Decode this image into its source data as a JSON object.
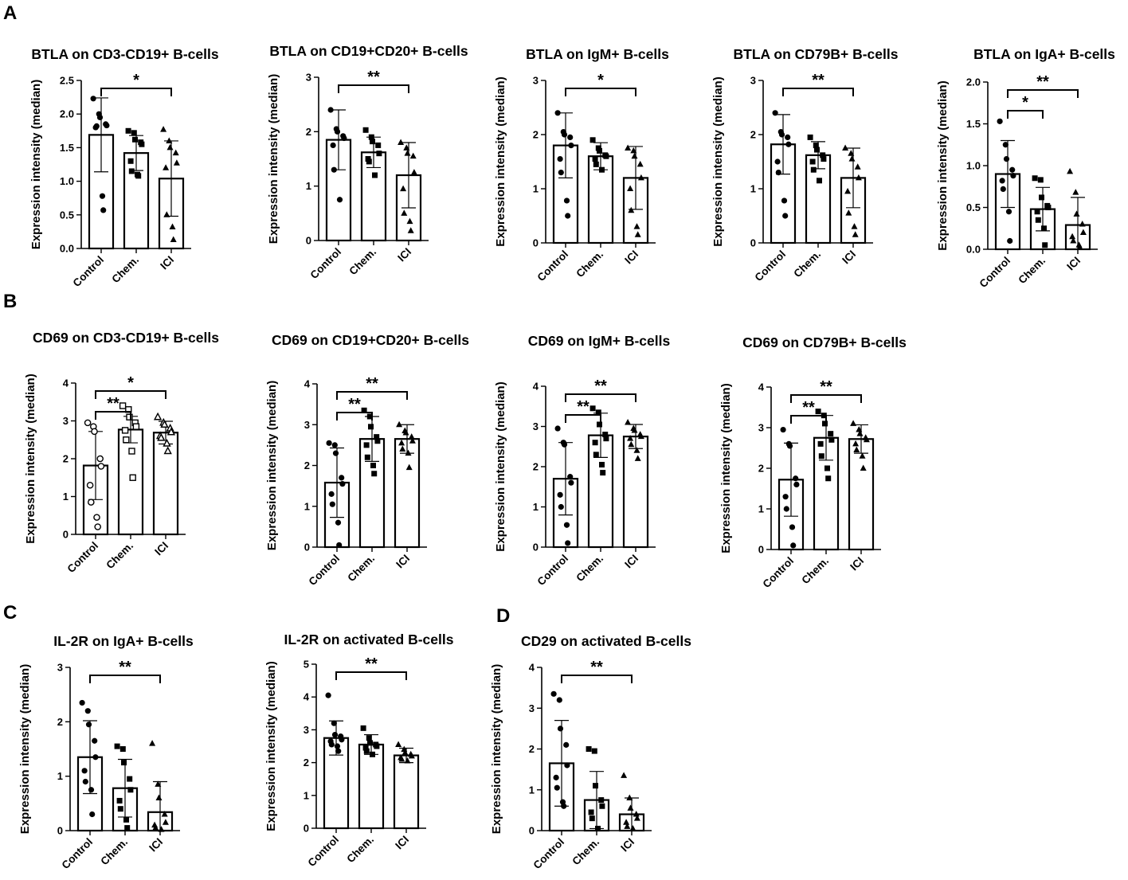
{
  "panel_labels": {
    "A": "A",
    "B": "B",
    "C": "C",
    "D": "D"
  },
  "colors": {
    "ink": "#000000",
    "bar_fill": "#ffffff"
  },
  "chart_data": [
    {
      "type": "bar",
      "panel": "A",
      "title": "BTLA on CD3-CD19+ B-cells",
      "ylabel": "Expression intensity (median)",
      "categories": [
        "Control",
        "Chem.",
        "ICI"
      ],
      "values": [
        1.69,
        1.42,
        1.04
      ],
      "sd": [
        0.55,
        0.26,
        0.56
      ],
      "ylim": [
        0,
        2.5
      ],
      "yticks": [
        "0.0",
        "0.5",
        "1.0",
        "1.5",
        "2.0",
        "2.5"
      ],
      "markers": [
        "circle",
        "square",
        "triangle"
      ],
      "points": [
        [
          2.23,
          2.0,
          1.95,
          1.85,
          1.83,
          1.8,
          1.82,
          0.78,
          0.57
        ],
        [
          1.75,
          1.72,
          1.62,
          1.58,
          1.55,
          1.3,
          1.15,
          1.1,
          1.08
        ],
        [
          1.77,
          1.6,
          1.5,
          1.42,
          1.27,
          1.2,
          0.5,
          0.32,
          0.13
        ]
      ],
      "significance": [
        {
          "from": 0,
          "to": 2,
          "label": "*"
        }
      ]
    },
    {
      "type": "bar",
      "panel": "A",
      "title": "BTLA on CD19+CD20+ B-cells",
      "ylabel": "Expression intensity (median)",
      "categories": [
        "Control",
        "Chem.",
        "ICI"
      ],
      "values": [
        1.85,
        1.62,
        1.2
      ],
      "sd": [
        0.55,
        0.28,
        0.6
      ],
      "ylim": [
        0,
        3
      ],
      "yticks": [
        "0",
        "1",
        "2",
        "3"
      ],
      "markers": [
        "circle",
        "square",
        "triangle"
      ],
      "points": [
        [
          2.4,
          2.05,
          2.0,
          1.92,
          1.88,
          1.75,
          1.3,
          0.75
        ],
        [
          2.03,
          1.9,
          1.82,
          1.75,
          1.6,
          1.5,
          1.45,
          1.2
        ],
        [
          1.8,
          1.7,
          1.6,
          1.55,
          1.25,
          0.95,
          0.5,
          0.35,
          0.18
        ]
      ],
      "significance": [
        {
          "from": 0,
          "to": 2,
          "label": "**"
        }
      ]
    },
    {
      "type": "bar",
      "panel": "A",
      "title": "BTLA on IgM+ B-cells",
      "ylabel": "Expression intensity (median)",
      "categories": [
        "Control",
        "Chem.",
        "ICI"
      ],
      "values": [
        1.8,
        1.6,
        1.2
      ],
      "sd": [
        0.6,
        0.25,
        0.58
      ],
      "ylim": [
        0,
        3
      ],
      "yticks": [
        "0",
        "1",
        "2",
        "3"
      ],
      "markers": [
        "circle",
        "square",
        "triangle"
      ],
      "points": [
        [
          2.4,
          2.05,
          2.0,
          1.95,
          1.8,
          1.55,
          1.3,
          0.78,
          0.5
        ],
        [
          1.9,
          1.75,
          1.7,
          1.62,
          1.6,
          1.55,
          1.45,
          1.35
        ],
        [
          1.75,
          1.7,
          1.6,
          1.45,
          1.2,
          1.0,
          0.6,
          0.3,
          0.15
        ]
      ],
      "significance": [
        {
          "from": 0,
          "to": 2,
          "label": "*"
        }
      ]
    },
    {
      "type": "bar",
      "panel": "A",
      "title": "BTLA on CD79B+ B-cells",
      "ylabel": "Expression intensity (median)",
      "categories": [
        "Control",
        "Chem.",
        "ICI"
      ],
      "values": [
        1.82,
        1.62,
        1.2
      ],
      "sd": [
        0.55,
        0.25,
        0.55
      ],
      "ylim": [
        0,
        3
      ],
      "yticks": [
        "0",
        "1",
        "2",
        "3"
      ],
      "markers": [
        "circle",
        "square",
        "triangle"
      ],
      "points": [
        [
          2.4,
          2.05,
          2.0,
          1.95,
          1.82,
          1.5,
          1.3,
          0.78,
          0.5
        ],
        [
          1.95,
          1.8,
          1.72,
          1.62,
          1.55,
          1.5,
          1.35,
          1.15
        ],
        [
          1.75,
          1.65,
          1.55,
          1.4,
          1.2,
          0.95,
          0.55,
          0.3,
          0.15
        ]
      ],
      "significance": [
        {
          "from": 0,
          "to": 2,
          "label": "**"
        }
      ]
    },
    {
      "type": "bar",
      "panel": "A",
      "title": "BTLA on IgA+ B-cells",
      "ylabel": "Expression intensity (median)",
      "categories": [
        "Control",
        "Chem.",
        "ICI"
      ],
      "values": [
        0.9,
        0.48,
        0.29
      ],
      "sd": [
        0.4,
        0.26,
        0.33
      ],
      "ylim": [
        0,
        2.0
      ],
      "yticks": [
        "0.0",
        "0.5",
        "1.0",
        "1.5",
        "2.0"
      ],
      "markers": [
        "circle",
        "square",
        "triangle"
      ],
      "points": [
        [
          1.53,
          1.25,
          1.08,
          0.95,
          0.88,
          0.82,
          0.72,
          0.45,
          0.1
        ],
        [
          0.85,
          0.83,
          0.62,
          0.52,
          0.5,
          0.45,
          0.35,
          0.25,
          0.05
        ],
        [
          0.93,
          0.68,
          0.42,
          0.3,
          0.2,
          0.15,
          0.1,
          0.05,
          0.02
        ]
      ],
      "significance": [
        {
          "from": 0,
          "to": 1,
          "label": "*"
        },
        {
          "from": 0,
          "to": 2,
          "label": "**"
        }
      ]
    },
    {
      "type": "bar",
      "panel": "B",
      "title": "CD69 on CD3-CD19+ B-cells",
      "ylabel": "Expression intensity (median)",
      "categories": [
        "Control",
        "Chem.",
        "ICI"
      ],
      "values": [
        1.82,
        2.77,
        2.69
      ],
      "sd": [
        0.9,
        0.35,
        0.3
      ],
      "ylim": [
        0,
        4
      ],
      "yticks": [
        "0",
        "1",
        "2",
        "3",
        "4"
      ],
      "markers": [
        "circle-open",
        "square-open",
        "triangle-open"
      ],
      "points": [
        [
          2.95,
          2.85,
          2.72,
          2.0,
          1.8,
          1.3,
          0.85,
          0.45,
          0.2
        ],
        [
          3.4,
          3.3,
          3.1,
          2.95,
          2.85,
          2.75,
          2.5,
          2.2,
          1.5
        ],
        [
          3.1,
          2.95,
          2.9,
          2.8,
          2.7,
          2.6,
          2.55,
          2.4,
          2.2
        ]
      ],
      "significance": [
        {
          "from": 0,
          "to": 1,
          "label": "**"
        },
        {
          "from": 0,
          "to": 2,
          "label": "*"
        }
      ]
    },
    {
      "type": "bar",
      "panel": "B",
      "title": "CD69 on CD19+CD20+ B-cells",
      "ylabel": "Expression intensity (median)",
      "categories": [
        "Control",
        "Chem.",
        "ICI"
      ],
      "values": [
        1.58,
        2.65,
        2.65
      ],
      "sd": [
        0.85,
        0.55,
        0.35
      ],
      "ylim": [
        0,
        4
      ],
      "yticks": [
        "0",
        "1",
        "2",
        "3",
        "4"
      ],
      "markers": [
        "circle",
        "square",
        "triangle"
      ],
      "points": [
        [
          2.55,
          2.5,
          2.3,
          1.7,
          1.55,
          1.3,
          1.05,
          0.6,
          0.05
        ],
        [
          3.35,
          3.2,
          2.95,
          2.7,
          2.6,
          2.5,
          2.2,
          2.0,
          1.8
        ],
        [
          3.0,
          2.85,
          2.8,
          2.7,
          2.6,
          2.55,
          2.4,
          2.3,
          1.95
        ]
      ],
      "significance": [
        {
          "from": 0,
          "to": 1,
          "label": "**"
        },
        {
          "from": 0,
          "to": 2,
          "label": "**"
        }
      ]
    },
    {
      "type": "bar",
      "panel": "B",
      "title": "CD69 on IgM+ B-cells",
      "ylabel": "Expression intensity (median)",
      "categories": [
        "Control",
        "Chem.",
        "ICI"
      ],
      "values": [
        1.7,
        2.78,
        2.75
      ],
      "sd": [
        0.9,
        0.55,
        0.3
      ],
      "ylim": [
        0,
        4
      ],
      "yticks": [
        "0",
        "1",
        "2",
        "3",
        "4"
      ],
      "markers": [
        "circle",
        "square",
        "triangle"
      ],
      "points": [
        [
          2.95,
          2.6,
          2.55,
          1.75,
          1.6,
          1.3,
          1.0,
          0.55,
          0.1
        ],
        [
          3.45,
          3.35,
          3.05,
          2.8,
          2.7,
          2.6,
          2.3,
          2.05,
          1.85
        ],
        [
          3.1,
          2.95,
          2.9,
          2.8,
          2.75,
          2.7,
          2.55,
          2.4,
          2.2
        ]
      ],
      "significance": [
        {
          "from": 0,
          "to": 1,
          "label": "**"
        },
        {
          "from": 0,
          "to": 2,
          "label": "**"
        }
      ]
    },
    {
      "type": "bar",
      "panel": "B",
      "title": "CD69 on CD79B+ B-cells",
      "ylabel": "Expression intensity (median)",
      "categories": [
        "Control",
        "Chem.",
        "ICI"
      ],
      "values": [
        1.72,
        2.75,
        2.72
      ],
      "sd": [
        0.9,
        0.55,
        0.35
      ],
      "ylim": [
        0,
        4
      ],
      "yticks": [
        "0",
        "1",
        "2",
        "3",
        "4"
      ],
      "markers": [
        "circle",
        "square",
        "triangle"
      ],
      "points": [
        [
          2.95,
          2.6,
          2.55,
          1.75,
          1.6,
          1.3,
          1.0,
          0.55,
          0.1
        ],
        [
          3.4,
          3.3,
          3.1,
          2.85,
          2.7,
          2.6,
          2.3,
          2.0,
          1.75
        ],
        [
          3.1,
          2.95,
          2.85,
          2.75,
          2.7,
          2.6,
          2.45,
          2.3,
          2.0
        ]
      ],
      "significance": [
        {
          "from": 0,
          "to": 1,
          "label": "**"
        },
        {
          "from": 0,
          "to": 2,
          "label": "**"
        }
      ]
    },
    {
      "type": "bar",
      "panel": "C",
      "title": "IL-2R on IgA+ B-cells",
      "ylabel": "Expression intensity (median)",
      "categories": [
        "Control",
        "Chem.",
        "ICI"
      ],
      "values": [
        1.35,
        0.78,
        0.34
      ],
      "sd": [
        0.67,
        0.53,
        0.56
      ],
      "ylim": [
        0,
        3
      ],
      "yticks": [
        "0",
        "1",
        "2",
        "3"
      ],
      "markers": [
        "circle",
        "square",
        "triangle"
      ],
      "points": [
        [
          2.35,
          2.2,
          1.95,
          1.65,
          1.35,
          1.1,
          0.9,
          0.75,
          0.3
        ],
        [
          1.55,
          1.5,
          1.25,
          0.95,
          0.75,
          0.55,
          0.4,
          0.2,
          0.05
        ],
        [
          1.6,
          0.85,
          0.6,
          0.3,
          0.15,
          0.1,
          0.05,
          0.02
        ]
      ],
      "significance": [
        {
          "from": 0,
          "to": 2,
          "label": "**"
        }
      ]
    },
    {
      "type": "bar",
      "panel": "C",
      "title": "IL-2R on activated B-cells",
      "ylabel": "Expression intensity (median)",
      "categories": [
        "Control",
        "Chem.",
        "ICI"
      ],
      "values": [
        2.75,
        2.55,
        2.22
      ],
      "sd": [
        0.52,
        0.3,
        0.22
      ],
      "ylim": [
        0,
        5
      ],
      "yticks": [
        "0",
        "1",
        "2",
        "3",
        "4",
        "5"
      ],
      "markers": [
        "circle",
        "square",
        "triangle"
      ],
      "points": [
        [
          4.05,
          3.2,
          2.85,
          2.8,
          2.7,
          2.65,
          2.55,
          2.5,
          2.35
        ],
        [
          3.05,
          2.75,
          2.6,
          2.55,
          2.5,
          2.45,
          2.35,
          2.25
        ],
        [
          2.55,
          2.4,
          2.3,
          2.25,
          2.2,
          2.15,
          2.1,
          2.05
        ]
      ],
      "significance": [
        {
          "from": 0,
          "to": 2,
          "label": "**"
        }
      ]
    },
    {
      "type": "bar",
      "panel": "D",
      "title": "CD29 on activated B-cells",
      "ylabel": "Expression intensity (median)",
      "categories": [
        "Control",
        "Chem.",
        "ICI"
      ],
      "values": [
        1.65,
        0.75,
        0.4
      ],
      "sd": [
        1.05,
        0.7,
        0.4
      ],
      "ylim": [
        0,
        4
      ],
      "yticks": [
        "0",
        "1",
        "2",
        "3",
        "4"
      ],
      "markers": [
        "circle",
        "square",
        "triangle"
      ],
      "points": [
        [
          3.35,
          3.2,
          2.5,
          2.1,
          1.6,
          1.3,
          1.05,
          0.7,
          0.6
        ],
        [
          2.0,
          1.95,
          1.1,
          0.75,
          0.6,
          0.45,
          0.3,
          0.05
        ],
        [
          1.35,
          0.8,
          0.55,
          0.4,
          0.3,
          0.2,
          0.1,
          0.05
        ]
      ],
      "significance": [
        {
          "from": 0,
          "to": 2,
          "label": "**"
        }
      ]
    }
  ]
}
